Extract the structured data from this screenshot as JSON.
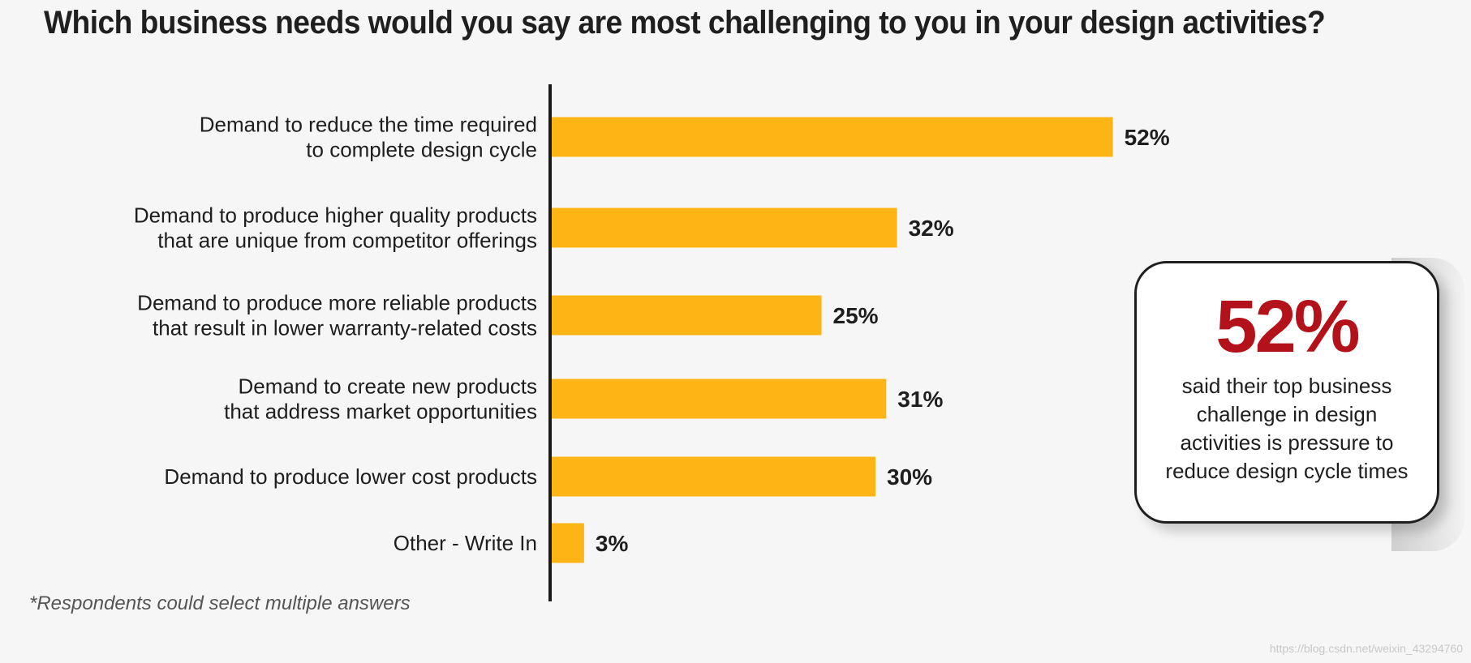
{
  "title": "Which business needs would you say are most challenging to you in your design activities?",
  "chart_data": {
    "type": "bar",
    "orientation": "horizontal",
    "categories": [
      [
        "Demand to reduce the time required",
        "to complete design cycle"
      ],
      [
        "Demand to produce higher quality products",
        "that are unique from competitor offerings"
      ],
      [
        "Demand to produce more reliable products",
        "that result in lower warranty-related costs"
      ],
      [
        "Demand to create new products",
        "that address market opportunities"
      ],
      [
        "Demand to produce lower cost products"
      ],
      [
        "Other - Write In"
      ]
    ],
    "values": [
      52,
      32,
      25,
      31,
      30,
      3
    ],
    "value_labels": [
      "52%",
      "32%",
      "25%",
      "31%",
      "30%",
      "3%"
    ],
    "unit": "%",
    "xlim": [
      0,
      100
    ],
    "grid": false,
    "bar_color": "#fdb515",
    "axis_color": "#1a1a1a",
    "text_color": "#1e1e1e"
  },
  "footnote": "*Respondents could select multiple answers",
  "callout": {
    "big_value": "52%",
    "text": "said their top business challenge in design activities is pressure to reduce design cycle times",
    "accent_color": "#b3121b"
  },
  "watermark": "https://blog.csdn.net/weixin_43294760"
}
